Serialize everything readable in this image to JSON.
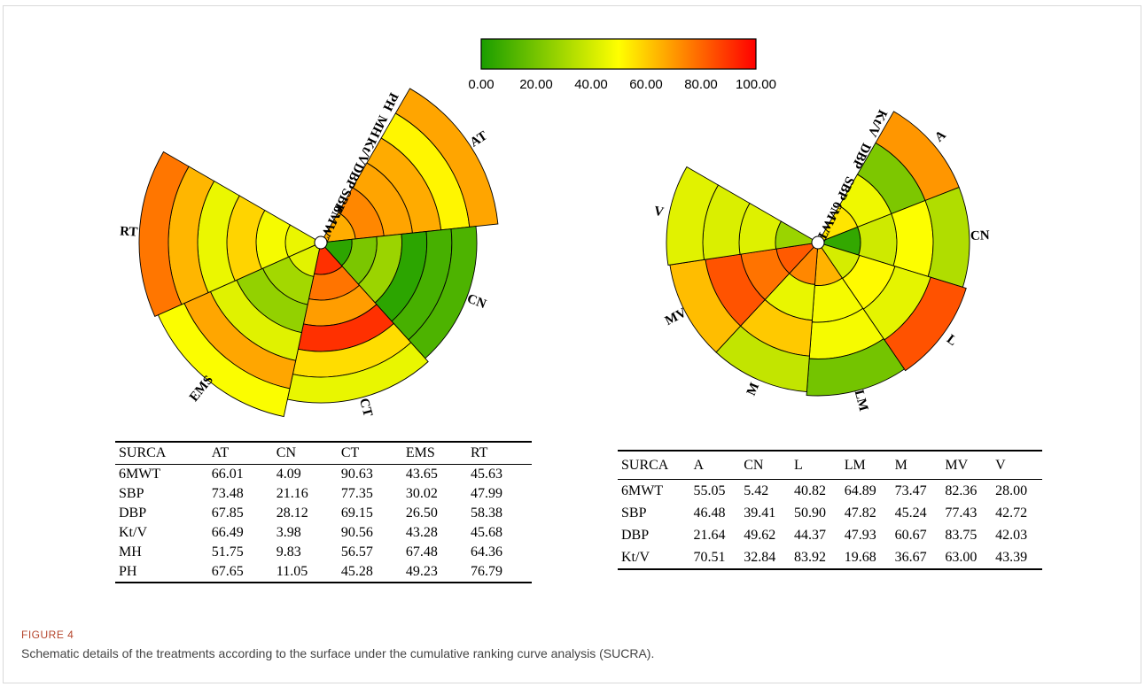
{
  "colorbar": {
    "ticks": [
      "0.00",
      "20.00",
      "40.00",
      "60.00",
      "80.00",
      "100.00"
    ],
    "min": 0,
    "max": 100,
    "gradient": [
      "#1a9d00",
      "#ffff00",
      "#ff0000"
    ]
  },
  "chart_data": [
    {
      "type": "heatmap",
      "title": "",
      "categories": [
        "AT",
        "CN",
        "CT",
        "EMS",
        "RT"
      ],
      "rings": [
        "6MWT",
        "SBP",
        "DBP",
        "Kt/V",
        "MH",
        "PH"
      ],
      "values": {
        "6MWT": [
          66.01,
          4.09,
          90.63,
          43.65,
          45.63
        ],
        "SBP": [
          73.48,
          21.16,
          77.35,
          30.02,
          47.99
        ],
        "DBP": [
          67.85,
          28.12,
          69.15,
          26.5,
          58.38
        ],
        "Kt/V": [
          66.49,
          3.98,
          90.56,
          43.28,
          45.68
        ],
        "MH": [
          51.75,
          9.83,
          56.57,
          67.48,
          64.36
        ],
        "PH": [
          67.65,
          11.05,
          45.28,
          49.23,
          76.79
        ]
      }
    },
    {
      "type": "heatmap",
      "title": "",
      "categories": [
        "A",
        "CN",
        "L",
        "LM",
        "M",
        "MV",
        "V"
      ],
      "rings": [
        "6MWT",
        "SBP",
        "DBP",
        "Kt/V"
      ],
      "values": {
        "6MWT": [
          55.05,
          5.42,
          40.82,
          64.89,
          73.47,
          82.36,
          28.0
        ],
        "SBP": [
          46.48,
          39.41,
          50.9,
          47.82,
          45.24,
          77.43,
          42.72
        ],
        "DBP": [
          21.64,
          49.62,
          44.37,
          47.93,
          60.67,
          83.75,
          42.03
        ],
        "Kt/V": [
          70.51,
          32.84,
          83.92,
          19.68,
          36.67,
          63.0,
          43.39
        ]
      }
    }
  ],
  "tables": {
    "left": {
      "corner": "SURCA",
      "columns": [
        "AT",
        "CN",
        "CT",
        "EMS",
        "RT"
      ],
      "rows": [
        {
          "label": "6MWT",
          "values": [
            "66.01",
            "4.09",
            "90.63",
            "43.65",
            "45.63"
          ]
        },
        {
          "label": "SBP",
          "values": [
            "73.48",
            "21.16",
            "77.35",
            "30.02",
            "47.99"
          ]
        },
        {
          "label": "DBP",
          "values": [
            "67.85",
            "28.12",
            "69.15",
            "26.50",
            "58.38"
          ]
        },
        {
          "label": "Kt/V",
          "values": [
            "66.49",
            "3.98",
            "90.56",
            "43.28",
            "45.68"
          ]
        },
        {
          "label": "MH",
          "values": [
            "51.75",
            "9.83",
            "56.57",
            "67.48",
            "64.36"
          ]
        },
        {
          "label": "PH",
          "values": [
            "67.65",
            "11.05",
            "45.28",
            "49.23",
            "76.79"
          ]
        }
      ]
    },
    "right": {
      "corner": "SURCA",
      "columns": [
        "A",
        "CN",
        "L",
        "LM",
        "M",
        "MV",
        "V"
      ],
      "rows": [
        {
          "label": "6MWT",
          "values": [
            "55.05",
            "5.42",
            "40.82",
            "64.89",
            "73.47",
            "82.36",
            "28.00"
          ]
        },
        {
          "label": "SBP",
          "values": [
            "46.48",
            "39.41",
            "50.90",
            "47.82",
            "45.24",
            "77.43",
            "42.72"
          ]
        },
        {
          "label": "DBP",
          "values": [
            "21.64",
            "49.62",
            "44.37",
            "47.93",
            "60.67",
            "83.75",
            "42.03"
          ]
        },
        {
          "label": "Kt/V",
          "values": [
            "70.51",
            "32.84",
            "83.92",
            "19.68",
            "36.67",
            "63.00",
            "43.39"
          ]
        }
      ]
    }
  },
  "figure": {
    "label": "FIGURE 4",
    "caption": "Schematic details of the treatments according to the surface under the cumulative ranking curve analysis (SUCRA)."
  }
}
